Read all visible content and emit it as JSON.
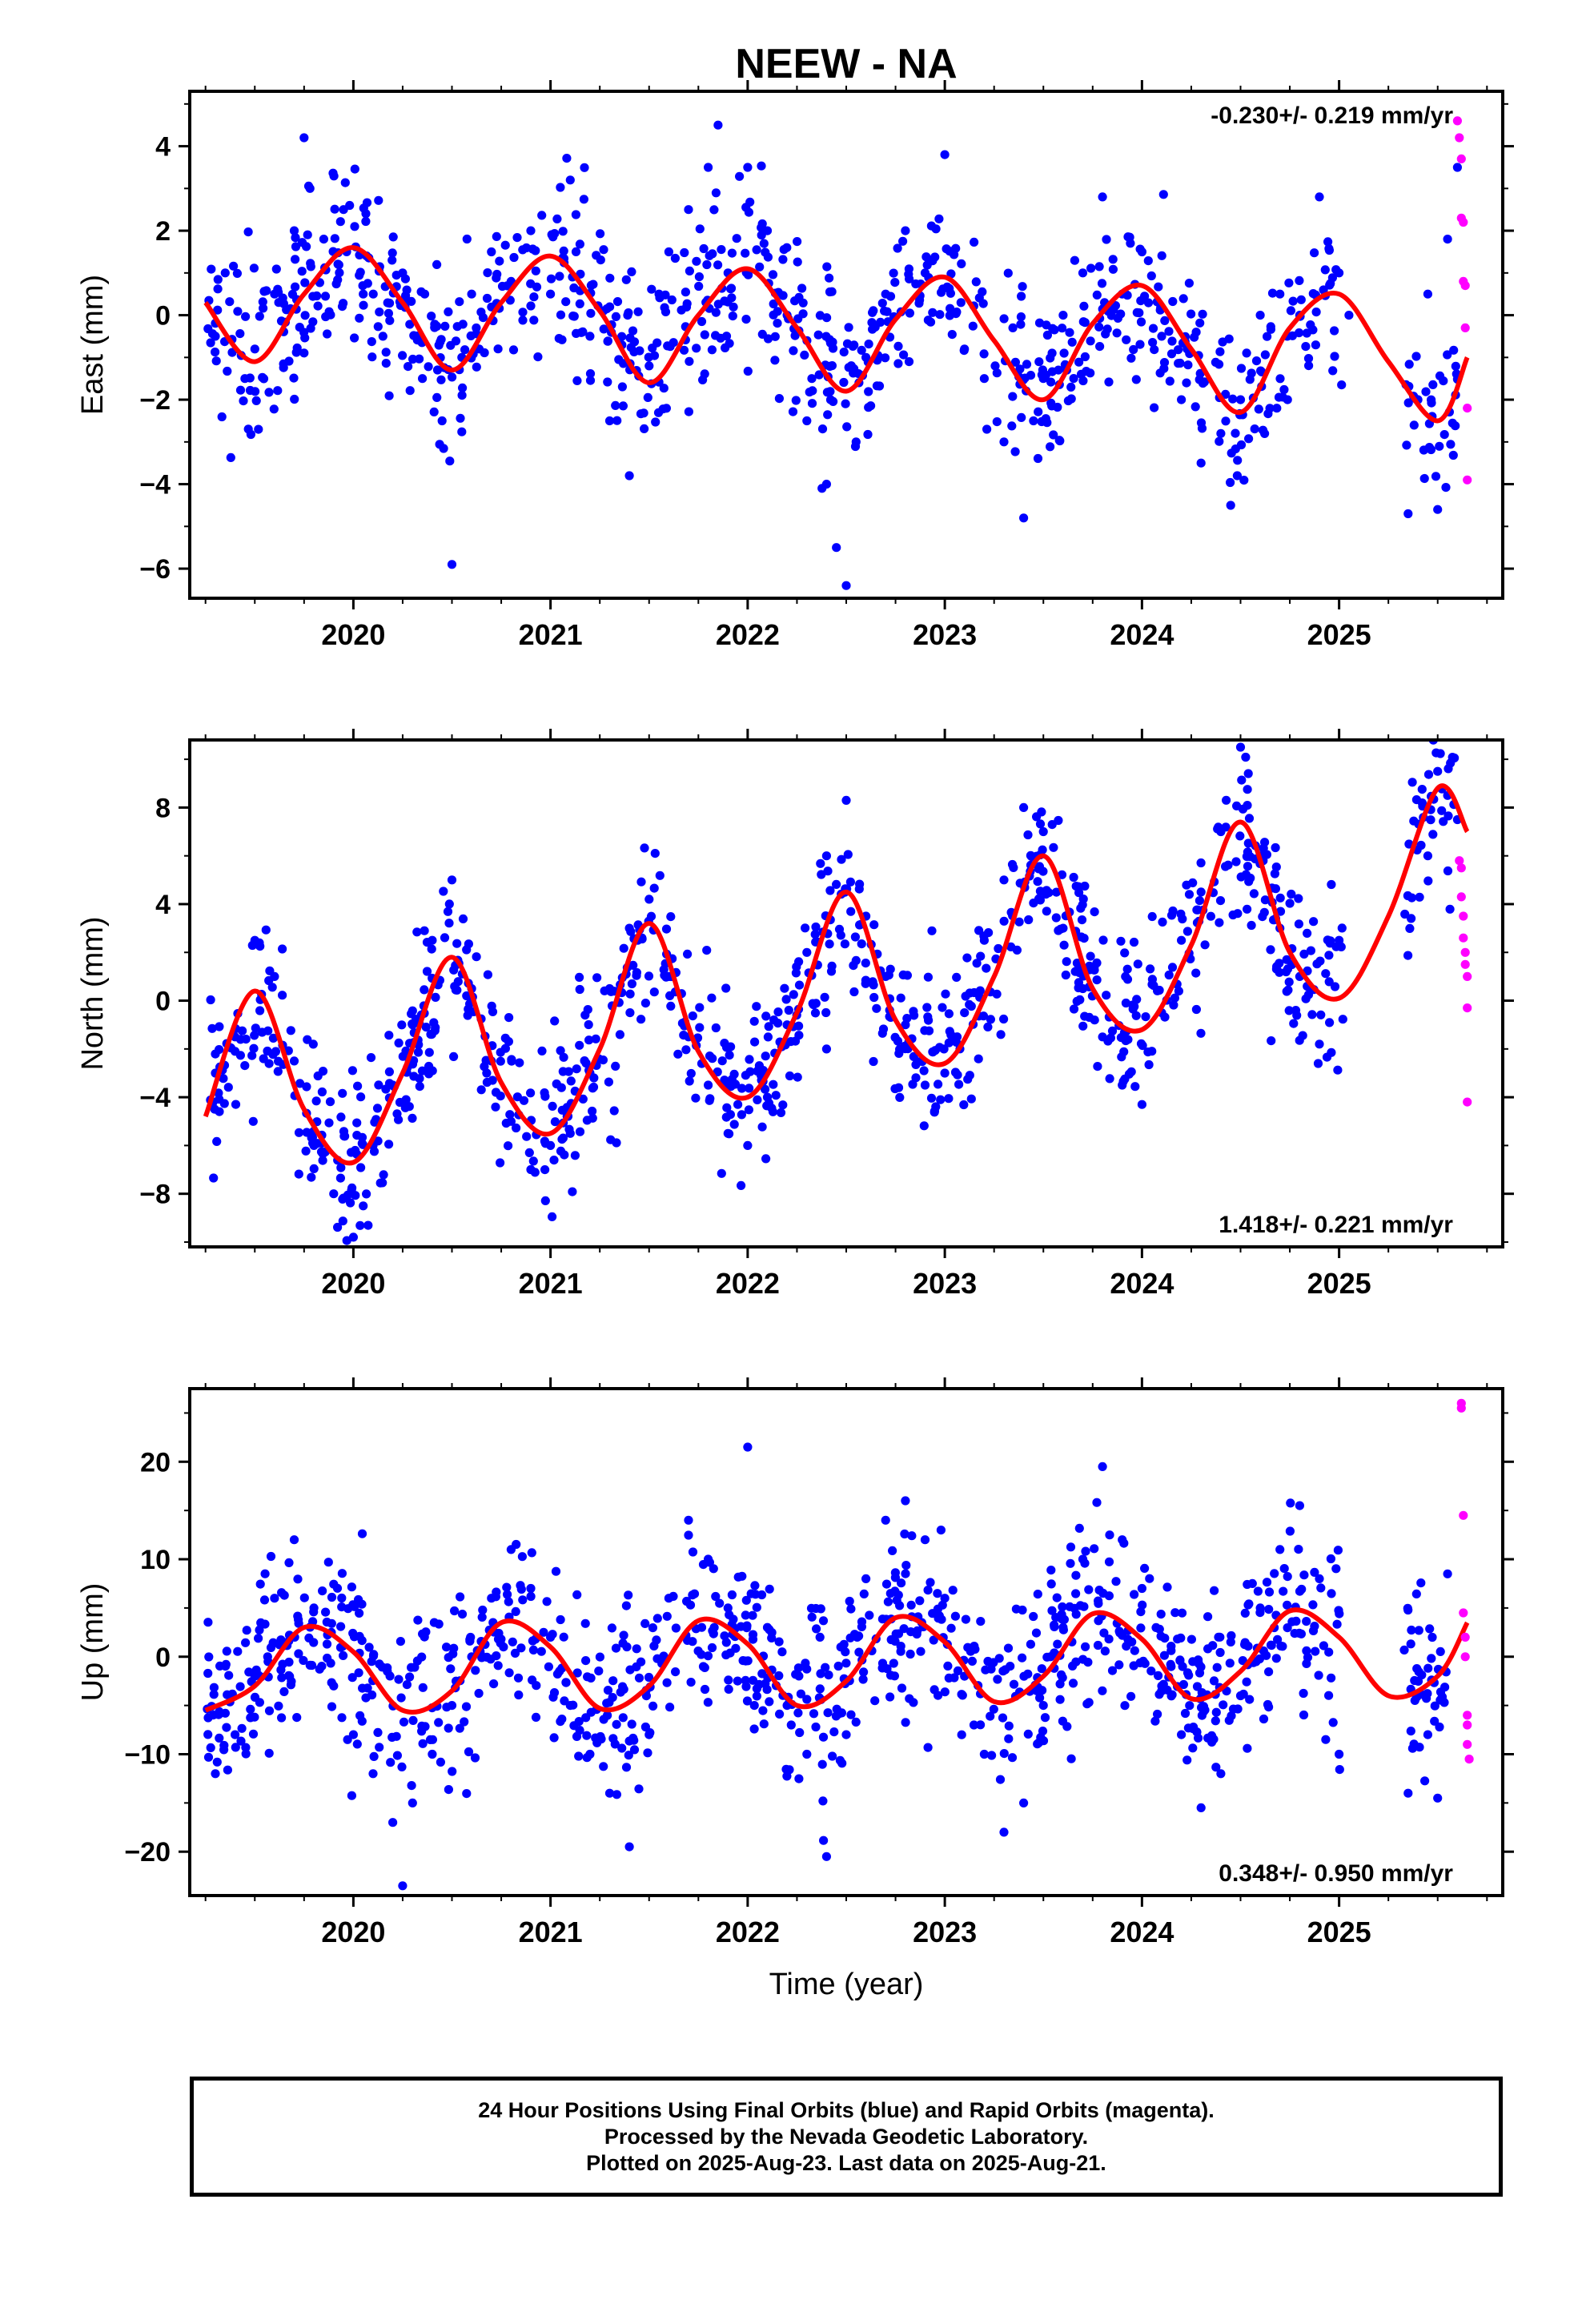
{
  "figure_title": "NEEW - NA",
  "colors": {
    "final_orbits": "#0000ff",
    "rapid_orbits": "#ff00ff",
    "fit_curve": "#ff0000"
  },
  "xlabel": "Time (year)",
  "caption": [
    "24 Hour Positions Using Final Orbits (blue) and Rapid Orbits (magenta).",
    "Processed by the Nevada Geodetic Laboratory.",
    "Plotted on 2025-Aug-23. Last data on 2025-Aug-21."
  ],
  "chart_data": [
    {
      "type": "scatter",
      "component": "east",
      "ylabel": "East (mm)",
      "velocity_label": "-0.230+/- 0.219 mm/yr",
      "velocity_label_position": "top-right",
      "xlim": [
        2019.17,
        2025.83
      ],
      "ylim": [
        -6.7,
        5.3
      ],
      "xticks": [
        2020,
        2021,
        2022,
        2023,
        2024,
        2025
      ],
      "yticks": [
        -6,
        -4,
        -2,
        0,
        2,
        4
      ],
      "fit_curve": {
        "x": [
          2019.25,
          2019.5,
          2019.75,
          2020.0,
          2020.25,
          2020.5,
          2020.75,
          2021.0,
          2021.25,
          2021.5,
          2021.75,
          2022.0,
          2022.25,
          2022.5,
          2022.75,
          2023.0,
          2023.25,
          2023.5,
          2023.75,
          2024.0,
          2024.25,
          2024.5,
          2024.75,
          2025.0,
          2025.25,
          2025.5,
          2025.65
        ],
        "y": [
          0.3,
          -1.1,
          0.5,
          1.6,
          0.3,
          -1.3,
          0.3,
          1.4,
          0.1,
          -1.6,
          0.0,
          1.1,
          -0.3,
          -1.8,
          -0.1,
          0.9,
          -0.6,
          -2.0,
          -0.2,
          0.7,
          -0.8,
          -2.3,
          -0.3,
          0.5,
          -1.1,
          -2.5,
          -1.0
        ]
      },
      "final_orbits": {
        "x": [
          2019.3,
          2019.35,
          2019.45,
          2019.5,
          2019.6,
          2019.7,
          2019.75,
          2019.78,
          2019.85,
          2019.95,
          2020.05,
          2020.15,
          2020.25,
          2020.35,
          2020.45,
          2020.5,
          2020.55,
          2020.6,
          2020.7,
          2020.8,
          2020.9,
          2021.0,
          2021.1,
          2021.2,
          2021.3,
          2021.4,
          2021.5,
          2021.55,
          2021.6,
          2021.7,
          2021.8,
          2021.85,
          2021.9,
          2022.0,
          2022.1,
          2022.2,
          2022.3,
          2022.4,
          2022.45,
          2022.5,
          2022.55,
          2022.6,
          2022.7,
          2022.8,
          2022.9,
          2023.0,
          2023.1,
          2023.2,
          2023.3,
          2023.4,
          2023.45,
          2023.5,
          2023.6,
          2023.7,
          2023.8,
          2023.9,
          2024.0,
          2024.1,
          2024.2,
          2024.3,
          2024.4,
          2024.45,
          2024.5,
          2024.6,
          2024.7,
          2024.8,
          2024.9,
          2025.0,
          2025.05,
          2025.35,
          2025.4,
          2025.45,
          2025.5,
          2025.55,
          2025.6
        ],
        "y": [
          -0.5,
          1.0,
          -1.5,
          -0.8,
          0.5,
          2.0,
          4.2,
          3.0,
          1.8,
          2.5,
          0.5,
          -0.5,
          1.0,
          -1.5,
          -2.5,
          -5.9,
          -1.0,
          0.5,
          1.5,
          0.8,
          2.0,
          0.5,
          3.2,
          -0.5,
          -2.5,
          -3.8,
          -1.2,
          0.5,
          1.5,
          2.5,
          3.5,
          4.5,
          1.0,
          3.5,
          2.0,
          0.0,
          -2.5,
          -4.0,
          -5.5,
          -6.4,
          -3.0,
          -1.0,
          0.5,
          2.0,
          1.0,
          3.8,
          -0.8,
          -1.5,
          -3.0,
          -4.8,
          -2.5,
          -1.5,
          0.0,
          1.0,
          2.8,
          0.5,
          1.5,
          -0.5,
          -2.0,
          -3.5,
          -2.8,
          -4.5,
          -2.0,
          0.0,
          0.5,
          0.0,
          2.8,
          1.0,
          0.0,
          -4.7,
          -2.0,
          0.5,
          -4.6,
          1.8,
          3.5
        ],
        "jitter_count": 900
      },
      "rapid_orbits": {
        "x": [
          2025.6,
          2025.61,
          2025.62,
          2025.62,
          2025.63,
          2025.63,
          2025.64,
          2025.64,
          2025.65,
          2025.65
        ],
        "y": [
          4.6,
          4.2,
          3.7,
          2.3,
          2.2,
          0.8,
          0.7,
          -0.3,
          -2.2,
          -3.9
        ]
      }
    },
    {
      "type": "scatter",
      "component": "north",
      "ylabel": "North (mm)",
      "velocity_label": "1.418+/- 0.221 mm/yr",
      "velocity_label_position": "bottom-right",
      "xlim": [
        2019.17,
        2025.83
      ],
      "ylim": [
        -10.2,
        10.8
      ],
      "xticks": [
        2020,
        2021,
        2022,
        2023,
        2024,
        2025
      ],
      "yticks": [
        -8,
        -4,
        0,
        4,
        8
      ],
      "fit_curve": {
        "x": [
          2019.25,
          2019.5,
          2019.75,
          2020.0,
          2020.25,
          2020.5,
          2020.75,
          2021.0,
          2021.25,
          2021.5,
          2021.75,
          2022.0,
          2022.25,
          2022.5,
          2022.75,
          2023.0,
          2023.25,
          2023.5,
          2023.75,
          2024.0,
          2024.25,
          2024.5,
          2024.75,
          2025.0,
          2025.25,
          2025.5,
          2025.65
        ],
        "y": [
          -4.8,
          0.4,
          -4.5,
          -6.7,
          -3.0,
          1.8,
          -3.4,
          -5.5,
          -2.0,
          3.2,
          -2.1,
          -4.0,
          -0.5,
          4.5,
          -0.8,
          -2.6,
          1.0,
          6.0,
          0.5,
          -1.2,
          2.3,
          7.4,
          2.0,
          0.1,
          3.5,
          8.8,
          7.0
        ]
      },
      "final_orbits": {
        "x": [
          2019.3,
          2019.4,
          2019.5,
          2019.6,
          2019.7,
          2019.8,
          2019.9,
          2020.0,
          2020.05,
          2020.1,
          2020.2,
          2020.3,
          2020.4,
          2020.5,
          2020.6,
          2020.7,
          2020.8,
          2020.9,
          2021.0,
          2021.1,
          2021.2,
          2021.3,
          2021.4,
          2021.5,
          2021.6,
          2021.7,
          2021.8,
          2021.9,
          2022.0,
          2022.1,
          2022.2,
          2022.3,
          2022.4,
          2022.5,
          2022.6,
          2022.7,
          2022.8,
          2022.9,
          2023.0,
          2023.1,
          2023.2,
          2023.3,
          2023.4,
          2023.5,
          2023.6,
          2023.7,
          2023.8,
          2023.9,
          2024.0,
          2024.1,
          2024.2,
          2024.3,
          2024.4,
          2024.5,
          2024.6,
          2024.7,
          2024.8,
          2024.9,
          2025.0,
          2025.45,
          2025.5,
          2025.55,
          2025.6
        ],
        "y": [
          -3.0,
          -1.5,
          2.5,
          1.0,
          -2.5,
          -6.0,
          -8.0,
          -9.8,
          -8.5,
          -6.0,
          -3.5,
          -1.0,
          2.5,
          5.0,
          0.5,
          -2.5,
          -5.0,
          -7.0,
          -6.0,
          -5.5,
          -3.0,
          0.5,
          3.0,
          4.2,
          1.0,
          -1.5,
          -3.5,
          -5.5,
          -6.0,
          -4.0,
          -1.0,
          2.0,
          6.0,
          8.3,
          3.5,
          1.0,
          -1.0,
          -3.5,
          -3.0,
          -0.5,
          2.5,
          5.0,
          8.0,
          7.0,
          3.0,
          0.5,
          -1.5,
          -3.5,
          -4.3,
          -0.5,
          2.5,
          4.5,
          7.0,
          10.5,
          6.0,
          3.0,
          1.0,
          -1.8,
          2.5,
          6.0,
          9.5,
          8.5,
          7.5
        ],
        "jitter_count": 1000
      },
      "rapid_orbits": {
        "x": [
          2025.61,
          2025.62,
          2025.62,
          2025.63,
          2025.63,
          2025.64,
          2025.64,
          2025.65,
          2025.65,
          2025.65
        ],
        "y": [
          5.8,
          5.5,
          4.3,
          3.5,
          2.6,
          2.0,
          1.5,
          1.0,
          -0.3,
          -4.2
        ]
      }
    },
    {
      "type": "scatter",
      "component": "up",
      "ylabel": "Up (mm)",
      "velocity_label": "0.348+/- 0.950 mm/yr",
      "velocity_label_position": "bottom-right",
      "xlim": [
        2019.17,
        2025.83
      ],
      "ylim": [
        -24.5,
        27.5
      ],
      "xticks": [
        2020,
        2021,
        2022,
        2023,
        2024,
        2025
      ],
      "yticks": [
        -20,
        -10,
        0,
        10,
        20
      ],
      "fit_curve": {
        "x": [
          2019.25,
          2019.5,
          2019.75,
          2020.0,
          2020.25,
          2020.5,
          2020.75,
          2021.0,
          2021.25,
          2021.5,
          2021.75,
          2022.0,
          2022.25,
          2022.5,
          2022.75,
          2023.0,
          2023.25,
          2023.5,
          2023.75,
          2024.0,
          2024.25,
          2024.5,
          2024.75,
          2025.0,
          2025.25,
          2025.5,
          2025.65
        ],
        "y": [
          -5.5,
          -3.0,
          3.0,
          0.5,
          -5.5,
          -3.5,
          3.5,
          1.0,
          -5.3,
          -3.0,
          3.7,
          1.3,
          -5.0,
          -2.5,
          4.0,
          1.5,
          -4.6,
          -2.0,
          4.4,
          1.8,
          -4.3,
          -1.5,
          4.7,
          2.0,
          -4.0,
          -2.0,
          3.5
        ]
      },
      "final_orbits": {
        "x": [
          2019.3,
          2019.4,
          2019.5,
          2019.6,
          2019.7,
          2019.8,
          2019.9,
          2020.0,
          2020.1,
          2020.2,
          2020.25,
          2020.3,
          2020.4,
          2020.5,
          2020.6,
          2020.7,
          2020.8,
          2020.9,
          2021.0,
          2021.1,
          2021.2,
          2021.3,
          2021.4,
          2021.5,
          2021.6,
          2021.7,
          2021.8,
          2021.9,
          2022.0,
          2022.1,
          2022.2,
          2022.3,
          2022.4,
          2022.5,
          2022.6,
          2022.7,
          2022.8,
          2022.9,
          2023.0,
          2023.1,
          2023.2,
          2023.3,
          2023.4,
          2023.5,
          2023.6,
          2023.7,
          2023.8,
          2023.9,
          2024.0,
          2024.1,
          2024.2,
          2024.3,
          2024.4,
          2024.5,
          2024.6,
          2024.7,
          2024.8,
          2024.9,
          2025.0,
          2025.35,
          2025.45,
          2025.5,
          2025.55
        ],
        "y": [
          -12.0,
          -8.0,
          -2.0,
          6.0,
          12.0,
          5.0,
          -3.0,
          -8.0,
          -12.0,
          -17.0,
          -23.5,
          -15.0,
          -10.0,
          -5.0,
          0.0,
          6.0,
          11.0,
          7.0,
          2.0,
          -5.0,
          -10.0,
          -14.0,
          -19.5,
          -8.0,
          6.0,
          14.0,
          10.0,
          5.0,
          21.5,
          3.0,
          -5.0,
          -10.0,
          -20.5,
          -8.0,
          8.0,
          14.0,
          16.0,
          12.0,
          6.0,
          -2.0,
          -10.0,
          -18.0,
          -15.0,
          -5.0,
          3.0,
          10.0,
          19.5,
          12.0,
          7.0,
          -3.0,
          -8.0,
          -15.5,
          -12.0,
          -4.0,
          5.0,
          11.0,
          15.5,
          8.0,
          -10.0,
          -14.0,
          -8.0,
          -14.5,
          8.5
        ],
        "jitter_count": 1000
      },
      "rapid_orbits": {
        "x": [
          2025.62,
          2025.62,
          2025.63,
          2025.63,
          2025.64,
          2025.64,
          2025.65,
          2025.65,
          2025.65,
          2025.66
        ],
        "y": [
          26.0,
          25.5,
          14.5,
          4.5,
          2.0,
          0.0,
          -6.0,
          -7.0,
          -9.0,
          -10.5
        ]
      }
    }
  ]
}
